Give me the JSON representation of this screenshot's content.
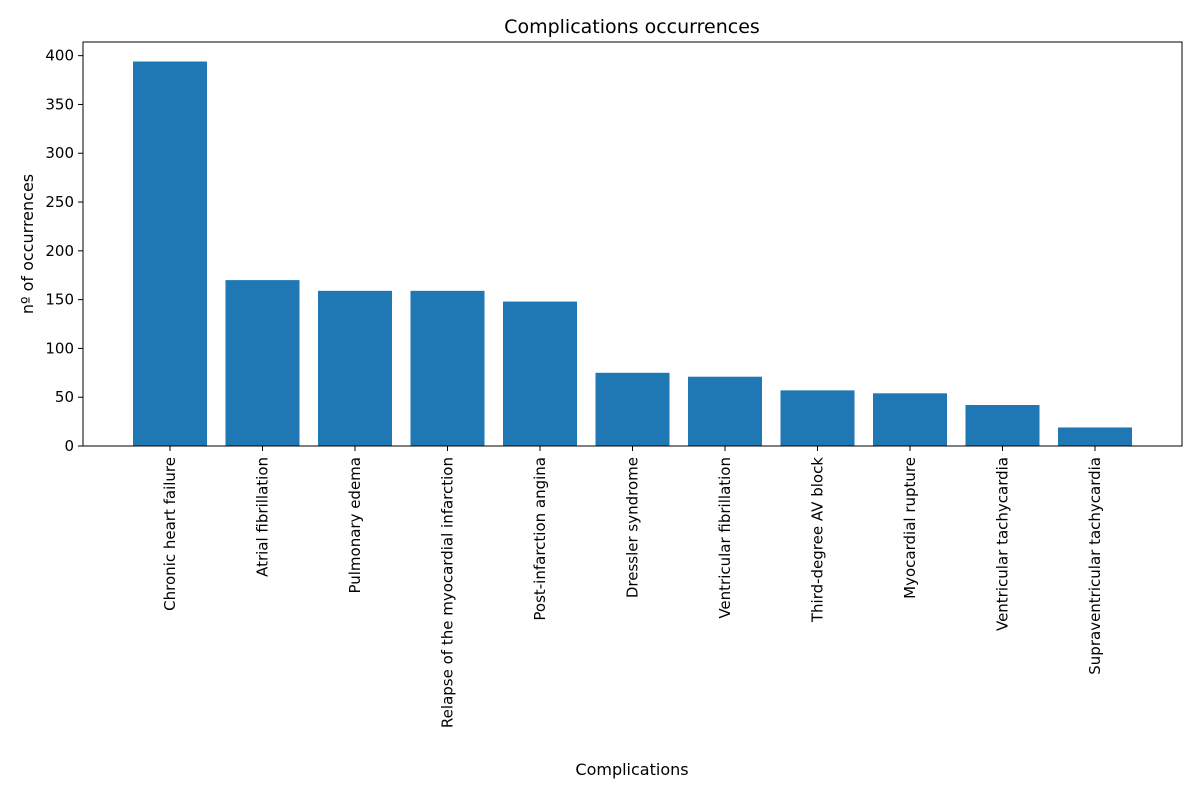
{
  "chart_data": {
    "type": "bar",
    "title": "Complications occurrences",
    "xlabel": "Complications",
    "ylabel": "nº of occurrences",
    "categories": [
      "Chronic heart failure",
      "Atrial fibrillation",
      "Pulmonary edema",
      "Relapse of the myocardial infarction",
      "Post-infarction angina",
      "Dressler syndrome",
      "Ventricular fibrillation",
      "Third-degree AV block",
      "Myocardial rupture",
      "Ventricular tachycardia",
      "Supraventricular tachycardia"
    ],
    "values": [
      394,
      170,
      159,
      159,
      148,
      75,
      71,
      57,
      54,
      42,
      19
    ],
    "ylim": [
      0,
      414
    ],
    "yticks": [
      0,
      50,
      100,
      150,
      200,
      250,
      300,
      350,
      400
    ],
    "bar_color": "#1f77b4",
    "grid": false
  }
}
